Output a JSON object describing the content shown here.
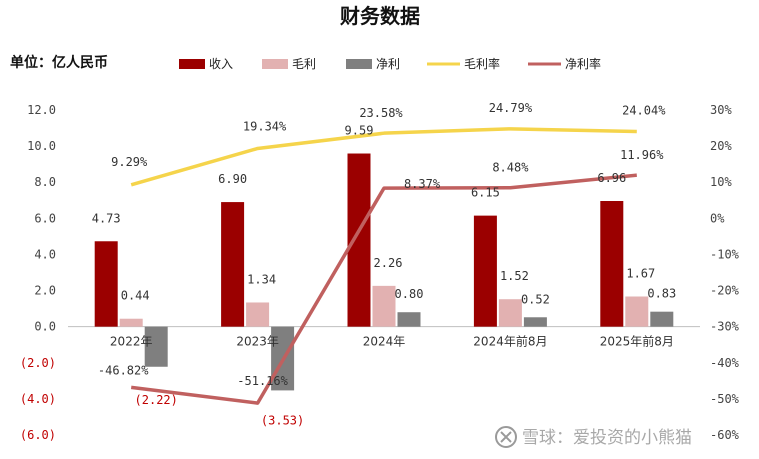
{
  "chart_data": {
    "type": "bar+line",
    "title": "财务数据",
    "unit_label": "单位：亿人民币",
    "categories": [
      "2022年",
      "2023年",
      "2024年",
      "2024年前8月",
      "2025年前8月"
    ],
    "left_axis": {
      "range": [
        -6,
        12
      ],
      "ticks": [
        12,
        10,
        8,
        6,
        4,
        2,
        0,
        -2,
        -4,
        -6
      ],
      "tick_labels": [
        "12.0",
        "10.0",
        "8.0",
        "6.0",
        "4.0",
        "2.0",
        "0.0",
        "(2.0)",
        "(4.0)",
        "(6.0)"
      ]
    },
    "right_axis": {
      "range": [
        -60,
        30
      ],
      "ticks": [
        30,
        20,
        10,
        0,
        -10,
        -20,
        -30,
        -40,
        -50,
        -60
      ],
      "tick_labels": [
        "30%",
        "20%",
        "10%",
        "0%",
        "-10%",
        "-20%",
        "-30%",
        "-40%",
        "-50%",
        "-60%"
      ]
    },
    "bar_series": [
      {
        "name": "收入",
        "color": "#9b0000",
        "values": [
          4.73,
          6.9,
          9.59,
          6.15,
          6.96
        ],
        "labels": [
          "4.73",
          "6.90",
          "9.59",
          "6.15",
          "6.96"
        ]
      },
      {
        "name": "毛利",
        "color": "#e2b1b1",
        "values": [
          0.44,
          1.34,
          2.26,
          1.52,
          1.67
        ],
        "labels": [
          "0.44",
          "1.34",
          "2.26",
          "1.52",
          "1.67"
        ]
      },
      {
        "name": "净利",
        "color": "#7f7f7f",
        "values": [
          -2.22,
          -3.53,
          0.8,
          0.52,
          0.83
        ],
        "labels": [
          "(2.22)",
          "(3.53)",
          "0.80",
          "0.52",
          "0.83"
        ]
      }
    ],
    "line_series": [
      {
        "name": "毛利率",
        "color": "#f5d44b",
        "values": [
          9.29,
          19.34,
          23.58,
          24.79,
          24.04
        ],
        "labels": [
          "9.29%",
          "19.34%",
          "23.58%",
          "24.79%",
          "24.04%"
        ]
      },
      {
        "name": "净利率",
        "color": "#c0605f",
        "values": [
          -46.82,
          -51.16,
          8.37,
          8.48,
          11.96
        ],
        "labels": [
          "-46.82%",
          "-51.16%",
          "8.37%",
          "8.48%",
          "11.96%"
        ]
      }
    ],
    "legend_position": "top"
  },
  "watermark": "雪球：爱投资的小熊猫",
  "watermark_icon": "snowball-logo-icon"
}
